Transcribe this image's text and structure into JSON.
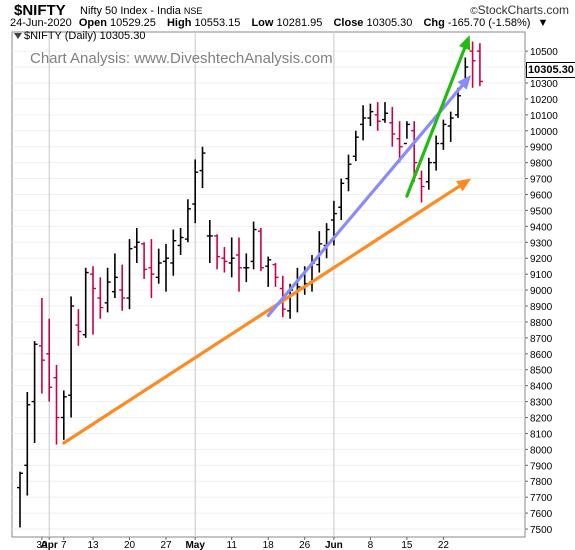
{
  "header": {
    "symbol": "$NIFTY",
    "name": "Nifty 50 Index - India",
    "exchange": "NSE",
    "logo": "StockCharts.com",
    "logo_mark": "©",
    "date": "24-Jun-2020",
    "open_label": "Open",
    "open": "10529.25",
    "high_label": "High",
    "high": "10553.15",
    "low_label": "Low",
    "low": "10281.95",
    "close_label": "Close",
    "close": "10305.30",
    "chg_label": "Chg",
    "chg": "-165.70 (-1.58%)",
    "chg_arrow": "▼"
  },
  "legend": {
    "text": "$NIFTY (Daily) 10305.30",
    "icon": "dropdown-triangle-icon"
  },
  "watermark": "Chart Analysis: www.DiveshtechAnalysis.com",
  "price_tag": "10305.30",
  "chart_data": {
    "type": "ohlc",
    "ylim": [
      7450,
      10620
    ],
    "y_ticks": [
      7500,
      7600,
      7700,
      7800,
      7900,
      8000,
      8100,
      8200,
      8300,
      8400,
      8500,
      8600,
      8700,
      8800,
      8900,
      9000,
      9100,
      9200,
      9300,
      9400,
      9500,
      9600,
      9700,
      9800,
      9900,
      10000,
      10100,
      10200,
      10300,
      10400,
      10500
    ],
    "x_tick_labels": [
      {
        "label": "30",
        "bar": 3
      },
      {
        "label": "Apr",
        "bar": 4,
        "bold": true
      },
      {
        "label": "7",
        "bar": 6
      },
      {
        "label": "13",
        "bar": 10
      },
      {
        "label": "20",
        "bar": 15
      },
      {
        "label": "27",
        "bar": 20
      },
      {
        "label": "May",
        "bar": 24,
        "bold": true
      },
      {
        "label": "11",
        "bar": 29
      },
      {
        "label": "18",
        "bar": 34
      },
      {
        "label": "26",
        "bar": 39
      },
      {
        "label": "Jun",
        "bar": 43,
        "bold": true
      },
      {
        "label": "8",
        "bar": 48
      },
      {
        "label": "15",
        "bar": 53
      },
      {
        "label": "22",
        "bar": 58
      }
    ],
    "month_lines": [
      4,
      24,
      43
    ],
    "up_color": "#000000",
    "down_color": "#cc0044",
    "bars": [
      [
        7760,
        7860,
        7510,
        7850
      ],
      [
        7900,
        8360,
        7710,
        8280
      ],
      [
        8300,
        8680,
        8040,
        8660
      ],
      [
        8650,
        8950,
        8350,
        8560
      ],
      [
        8600,
        8820,
        8300,
        8390
      ],
      [
        8450,
        8530,
        8030,
        8200
      ],
      [
        8200,
        8370,
        8060,
        8330
      ],
      [
        8340,
        8960,
        8200,
        8900
      ],
      [
        8780,
        8880,
        8650,
        8740
      ],
      [
        8720,
        9140,
        8700,
        9110
      ],
      [
        9100,
        9150,
        8720,
        9010
      ],
      [
        8950,
        9080,
        8820,
        8890
      ],
      [
        8920,
        9140,
        8860,
        9050
      ],
      [
        8990,
        9230,
        8950,
        9080
      ],
      [
        9000,
        9160,
        8870,
        8950
      ],
      [
        8950,
        9320,
        8880,
        9260
      ],
      [
        9270,
        9390,
        9170,
        9300
      ],
      [
        9290,
        9300,
        9070,
        9130
      ],
      [
        9140,
        9320,
        8950,
        9100
      ],
      [
        9080,
        9260,
        9040,
        9170
      ],
      [
        9180,
        9290,
        8990,
        9200
      ],
      [
        9170,
        9380,
        9090,
        9310
      ],
      [
        9280,
        9390,
        9220,
        9330
      ],
      [
        9320,
        9570,
        9300,
        9510
      ],
      [
        9540,
        9820,
        9420,
        9740
      ],
      [
        9750,
        9900,
        9640,
        9860
      ],
      [
        9340,
        9440,
        9170,
        9340
      ],
      [
        9340,
        9350,
        9130,
        9210
      ],
      [
        9200,
        9270,
        9110,
        9180
      ],
      [
        9170,
        9330,
        9080,
        9200
      ],
      [
        9220,
        9330,
        8990,
        9140
      ],
      [
        9140,
        9230,
        9050,
        9140
      ],
      [
        9180,
        9430,
        9130,
        9380
      ],
      [
        9370,
        9390,
        9120,
        9140
      ],
      [
        9150,
        9210,
        9020,
        9190
      ],
      [
        9160,
        9170,
        9020,
        9080
      ],
      [
        9010,
        9090,
        8830,
        8880
      ],
      [
        8870,
        9040,
        8820,
        9000
      ],
      [
        8980,
        9140,
        8860,
        9020
      ],
      [
        9010,
        9150,
        8970,
        9040
      ],
      [
        9050,
        9220,
        8990,
        9170
      ],
      [
        9160,
        9370,
        9110,
        9290
      ],
      [
        9280,
        9420,
        9200,
        9380
      ],
      [
        9440,
        9560,
        9280,
        9480
      ],
      [
        9520,
        9700,
        9440,
        9670
      ],
      [
        9700,
        9850,
        9620,
        9790
      ],
      [
        9840,
        10000,
        9810,
        9960
      ],
      [
        10040,
        10160,
        9940,
        10080
      ],
      [
        10080,
        10170,
        10030,
        10120
      ],
      [
        10100,
        10180,
        10000,
        10060
      ],
      [
        10070,
        10180,
        10050,
        10110
      ],
      [
        10050,
        10150,
        9900,
        9980
      ],
      [
        9950,
        10060,
        9800,
        9900
      ],
      [
        9920,
        10060,
        9950,
        10040
      ],
      [
        10000,
        10060,
        9680,
        9800
      ],
      [
        9700,
        9750,
        9550,
        9650
      ],
      [
        9680,
        9830,
        9630,
        9800
      ],
      [
        9800,
        9970,
        9750,
        9920
      ],
      [
        9920,
        10070,
        9880,
        10040
      ],
      [
        10030,
        10120,
        9930,
        10080
      ],
      [
        10100,
        10270,
        10080,
        10220
      ],
      [
        10300,
        10460,
        10270,
        10400
      ],
      [
        10500,
        10560,
        10270,
        10440
      ],
      [
        10500,
        10550,
        10280,
        10310
      ]
    ],
    "trendlines": [
      {
        "color": "#ff8a1f",
        "x1": 6,
        "y1": 8040,
        "x2": 61.8,
        "y2": 9700
      },
      {
        "color": "#8a8aff",
        "x1": 34,
        "y1": 8840,
        "x2": 61.8,
        "y2": 10350
      },
      {
        "color": "#22bb11",
        "x1": 53,
        "y1": 9590,
        "x2": 61.6,
        "y2": 10600
      }
    ]
  }
}
